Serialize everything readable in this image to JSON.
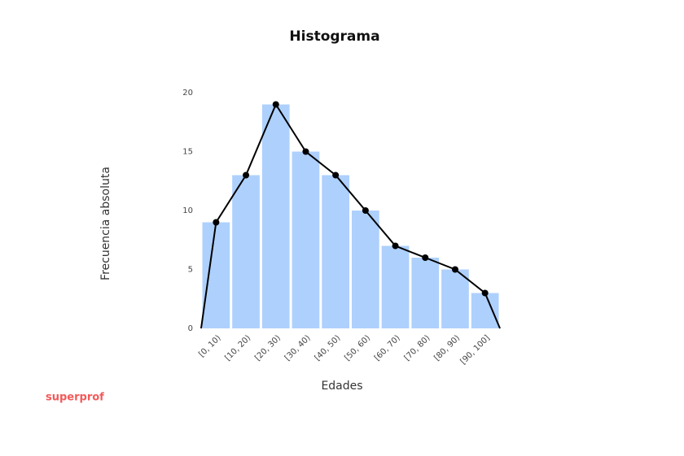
{
  "chart_data": {
    "type": "histogram",
    "title": "Histograma",
    "x_label": "Edades",
    "y_label": "Frecuencia absoluta",
    "bins": [
      0,
      10,
      20,
      30,
      40,
      50,
      60,
      70,
      80,
      90,
      100
    ],
    "categories": [
      "[0, 10)",
      "[10, 20)",
      "[20, 30)",
      "[30, 40)",
      "[40, 50)",
      "[50, 60)",
      "[60, 70)",
      "[70, 80)",
      "[80, 90)",
      "[90, 100]"
    ],
    "values": [
      9,
      13,
      19,
      15,
      13,
      10,
      7,
      6,
      5,
      3
    ],
    "color": "#aed0fd",
    "polygon": {
      "color": "#000000",
      "x": [
        0,
        5,
        15,
        25,
        35,
        45,
        55,
        65,
        75,
        85,
        95,
        100
      ],
      "values": [
        0,
        9,
        13,
        19,
        15,
        13,
        10,
        7,
        6,
        5,
        3,
        0
      ]
    },
    "xlim": [
      0,
      100
    ],
    "ylim": [
      0,
      20
    ],
    "yticks": [
      0,
      5,
      10,
      15,
      20
    ],
    "grid": false
  },
  "brand": "superprof"
}
